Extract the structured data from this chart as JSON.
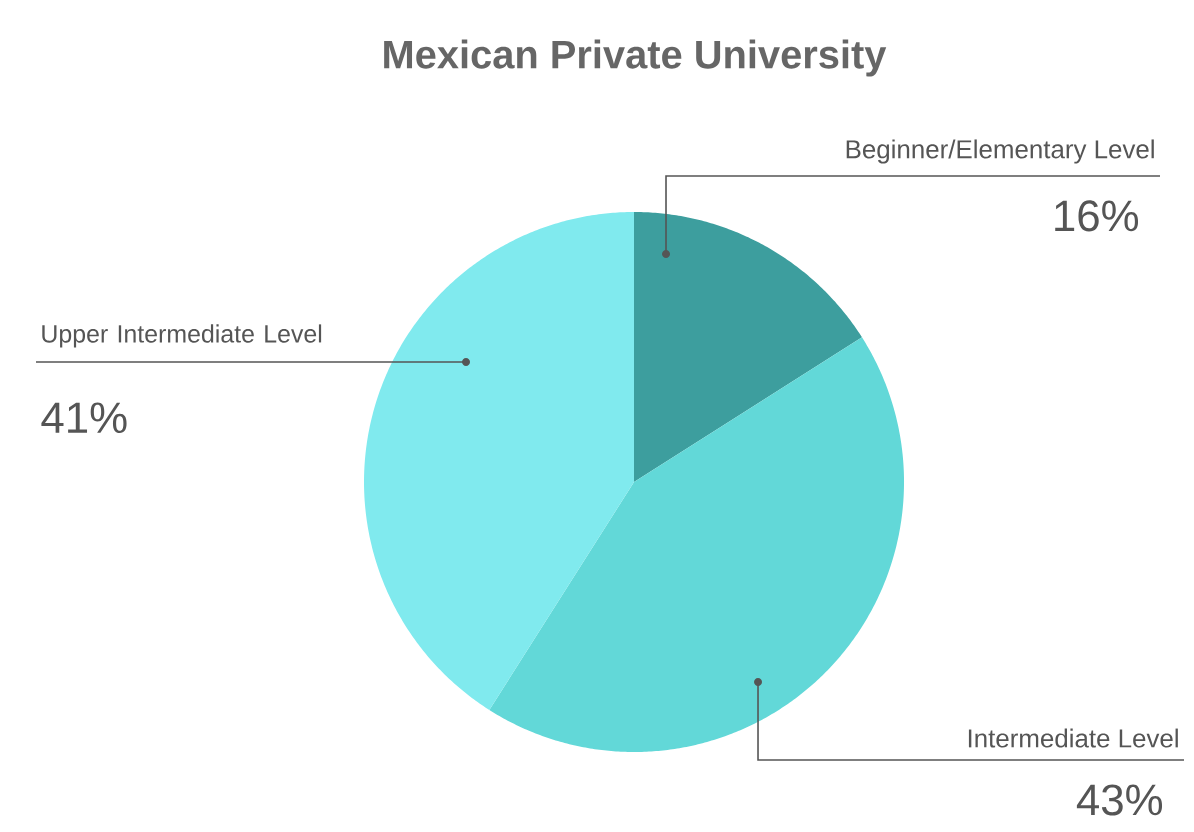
{
  "chart_data": {
    "type": "pie",
    "title": "Mexican Private University",
    "categories": [
      "Beginner/Elementary Level",
      "Intermediate Level",
      "Upper Intermediate Level"
    ],
    "values": [
      16,
      43,
      41
    ],
    "value_labels": [
      "16%",
      "43%",
      "41%"
    ],
    "colors": [
      "#3d9e9e",
      "#62d8d8",
      "#80eaee"
    ],
    "legend": false
  }
}
